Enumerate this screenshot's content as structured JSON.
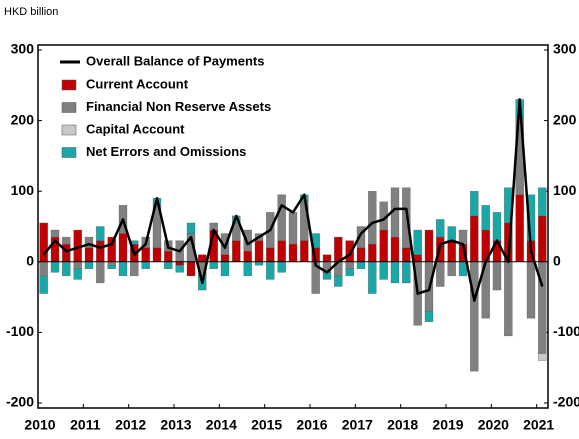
{
  "chart_data": {
    "type": "bar",
    "subtitle": "HKD billion",
    "categories": [
      "2010",
      null,
      null,
      null,
      "2011",
      null,
      null,
      null,
      "2012",
      null,
      null,
      null,
      "2013",
      null,
      null,
      null,
      "2014",
      null,
      null,
      null,
      "2015",
      null,
      null,
      null,
      "2016",
      null,
      null,
      null,
      "2017",
      null,
      null,
      null,
      "2018",
      null,
      null,
      null,
      "2019",
      null,
      null,
      null,
      "2020",
      null,
      null,
      null,
      "2021"
    ],
    "series": [
      {
        "name": "Current Account",
        "color": "#c00000",
        "values": [
          55,
          35,
          25,
          45,
          20,
          30,
          35,
          40,
          25,
          20,
          20,
          15,
          -5,
          -20,
          10,
          45,
          10,
          30,
          15,
          30,
          20,
          30,
          25,
          30,
          20,
          10,
          35,
          30,
          20,
          25,
          45,
          35,
          20,
          10,
          45,
          35,
          30,
          25,
          65,
          45,
          30,
          55,
          95,
          30,
          65
        ]
      },
      {
        "name": "Financial Non Reserve Assets",
        "color": "#808080",
        "values": [
          -20,
          10,
          10,
          -10,
          15,
          -30,
          -5,
          40,
          -20,
          15,
          60,
          15,
          30,
          40,
          -20,
          10,
          30,
          25,
          30,
          10,
          50,
          65,
          45,
          55,
          -45,
          -15,
          -20,
          -10,
          30,
          75,
          40,
          70,
          85,
          -90,
          -70,
          -35,
          -20,
          20,
          -155,
          -80,
          -40,
          -105,
          110,
          -80,
          -130
        ]
      },
      {
        "name": "Capital Account",
        "color": "#c8c8c8",
        "values": [
          0,
          0,
          0,
          0,
          0,
          0,
          0,
          0,
          0,
          0,
          0,
          0,
          0,
          0,
          0,
          0,
          0,
          0,
          0,
          0,
          0,
          0,
          0,
          0,
          0,
          0,
          0,
          0,
          0,
          0,
          0,
          0,
          0,
          0,
          0,
          0,
          0,
          0,
          0,
          0,
          0,
          0,
          0,
          0,
          -10
        ]
      },
      {
        "name": "Net Errors and Omissions",
        "color": "#1aa7a7",
        "values": [
          -25,
          -15,
          -20,
          -15,
          -10,
          20,
          -5,
          -20,
          5,
          -10,
          10,
          -10,
          -10,
          15,
          -20,
          -10,
          -20,
          10,
          -20,
          -5,
          -25,
          -15,
          0,
          10,
          20,
          -10,
          -15,
          -10,
          -10,
          -45,
          -25,
          -30,
          -30,
          35,
          -15,
          25,
          20,
          -20,
          35,
          35,
          40,
          50,
          25,
          65,
          40
        ]
      }
    ],
    "line": {
      "name": "Overall Balance of Payments",
      "color": "#000000",
      "values": [
        10,
        30,
        15,
        20,
        25,
        20,
        25,
        60,
        10,
        25,
        90,
        20,
        15,
        35,
        -30,
        45,
        20,
        65,
        25,
        35,
        45,
        80,
        70,
        95,
        -5,
        -15,
        0,
        10,
        40,
        55,
        60,
        75,
        75,
        -45,
        -40,
        25,
        30,
        25,
        -55,
        0,
        30,
        0,
        230,
        15,
        -35
      ]
    },
    "ylim": [
      -200,
      300
    ],
    "yticks": [
      -200,
      -100,
      0,
      100,
      200,
      300
    ]
  }
}
